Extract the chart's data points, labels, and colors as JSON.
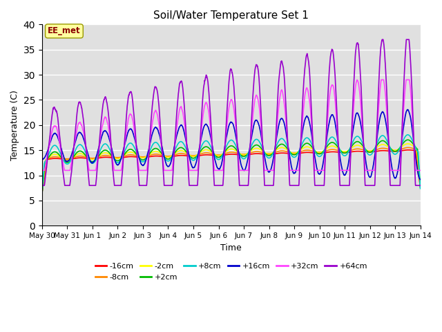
{
  "title": "Soil/Water Temperature Set 1",
  "xlabel": "Time",
  "ylabel": "Temperature (C)",
  "ylim": [
    0,
    40
  ],
  "yticks": [
    0,
    5,
    10,
    15,
    20,
    25,
    30,
    35,
    40
  ],
  "annotation_text": "EE_met",
  "bg_color": "#e0e0e0",
  "legend_entries": [
    {
      "label": "-16cm",
      "color": "#ff0000"
    },
    {
      "label": "-8cm",
      "color": "#ff8800"
    },
    {
      "label": "-2cm",
      "color": "#ffff00"
    },
    {
      "label": "+2cm",
      "color": "#00bb00"
    },
    {
      "label": "+8cm",
      "color": "#00cccc"
    },
    {
      "label": "+16cm",
      "color": "#0000cc"
    },
    {
      "label": "+32cm",
      "color": "#ff44ff"
    },
    {
      "label": "+64cm",
      "color": "#9900cc"
    }
  ],
  "x_tick_labels": [
    "May 30",
    "May 31",
    "Jun 1",
    "Jun 2",
    "Jun 3",
    "Jun 4",
    "Jun 5",
    "Jun 6",
    "Jun 7",
    "Jun 8",
    "Jun 9",
    "Jun 10",
    "Jun 11",
    "Jun 12",
    "Jun 13",
    "Jun 14"
  ],
  "x_tick_positions": [
    0,
    1,
    2,
    3,
    4,
    5,
    6,
    7,
    8,
    9,
    10,
    11,
    12,
    13,
    14,
    15
  ]
}
